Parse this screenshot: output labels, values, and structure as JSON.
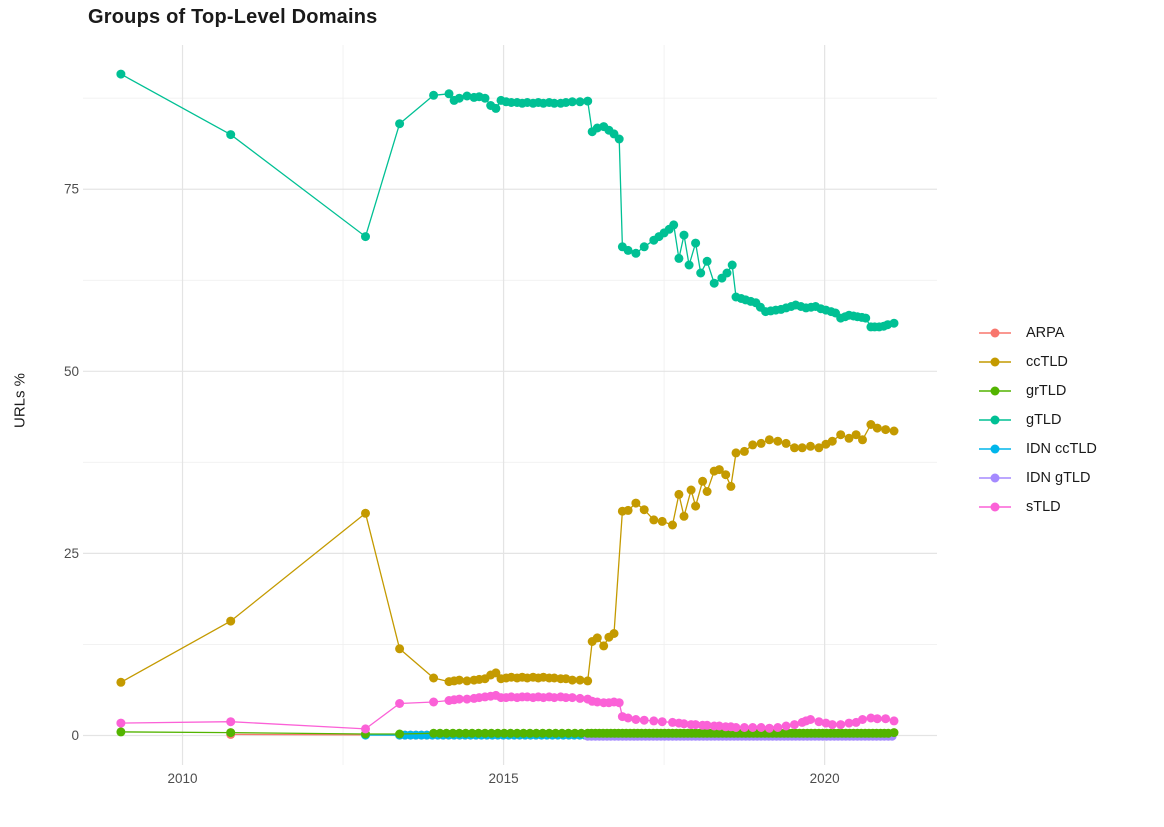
{
  "title": "Groups of Top-Level Domains",
  "y_axis": {
    "label": "URLs %",
    "tick_labels": [
      "0",
      "25",
      "50",
      "75"
    ]
  },
  "x_axis": {
    "tick_labels": [
      "2010",
      "2015",
      "2020"
    ]
  },
  "legend": {
    "position": "right",
    "items": [
      {
        "label": "ARPA",
        "color": "#F8766D"
      },
      {
        "label": "ccTLD",
        "color": "#C49A00"
      },
      {
        "label": "grTLD",
        "color": "#53B400"
      },
      {
        "label": "gTLD",
        "color": "#00C094"
      },
      {
        "label": "IDN ccTLD",
        "color": "#00B6EB"
      },
      {
        "label": "IDN gTLD",
        "color": "#A58AFF"
      },
      {
        "label": "sTLD",
        "color": "#FB61D7"
      }
    ]
  },
  "chart_data": {
    "type": "line",
    "title": "Groups of Top-Level Domains",
    "xlabel": "",
    "ylabel": "URLs %",
    "x_range": [
      2008.45,
      2021.75
    ],
    "y_range": [
      -4.05,
      94.8
    ],
    "x_major_ticks": [
      2010,
      2015,
      2020
    ],
    "x_minor_gridlines": [
      2012.5,
      2017.5
    ],
    "y_major_ticks": [
      0,
      25,
      50,
      75
    ],
    "y_minor_gridlines": [
      12.5,
      37.5,
      62.5,
      87.5
    ],
    "grid": true,
    "legend_position": "right",
    "marker_radius": 4.5,
    "line_width": 1.3,
    "series": [
      {
        "name": "ARPA",
        "color": "#F8766D",
        "points": [
          [
            2010.75,
            0.15
          ],
          [
            2012.85,
            0.1
          ]
        ],
        "runs": [
          {
            "from": 2013.38,
            "to": 2021.08,
            "step": 0.085,
            "value": 0.05
          }
        ]
      },
      {
        "name": "IDN ccTLD",
        "color": "#00B6EB",
        "points": [
          [
            2012.85,
            0.05
          ]
        ],
        "runs": [
          {
            "from": 2013.38,
            "to": 2021.08,
            "step": 0.085,
            "value": 0.05
          }
        ]
      },
      {
        "name": "IDN gTLD",
        "color": "#A58AFF",
        "points": [],
        "runs": [
          {
            "from": 2016.31,
            "to": 2021.08,
            "step": 0.06,
            "value": -0.1
          }
        ]
      },
      {
        "name": "ccTLD",
        "color": "#C49A00",
        "points": [
          [
            2009.04,
            7.3
          ],
          [
            2010.75,
            15.7
          ],
          [
            2012.85,
            30.5
          ],
          [
            2013.38,
            11.9
          ],
          [
            2013.91,
            7.9
          ],
          [
            2014.15,
            7.4
          ],
          [
            2014.23,
            7.5
          ],
          [
            2014.31,
            7.6
          ],
          [
            2014.43,
            7.5
          ],
          [
            2014.54,
            7.6
          ],
          [
            2014.62,
            7.7
          ],
          [
            2014.71,
            7.8
          ],
          [
            2014.8,
            8.3
          ],
          [
            2014.88,
            8.6
          ],
          [
            2014.96,
            7.8
          ],
          [
            2015.04,
            7.9
          ],
          [
            2015.12,
            8.0
          ],
          [
            2015.21,
            7.9
          ],
          [
            2015.29,
            8.0
          ],
          [
            2015.37,
            7.9
          ],
          [
            2015.46,
            8.0
          ],
          [
            2015.54,
            7.9
          ],
          [
            2015.62,
            8.0
          ],
          [
            2015.71,
            7.9
          ],
          [
            2015.79,
            7.9
          ],
          [
            2015.89,
            7.8
          ],
          [
            2015.97,
            7.8
          ],
          [
            2016.07,
            7.6
          ],
          [
            2016.19,
            7.6
          ],
          [
            2016.31,
            7.5
          ],
          [
            2016.38,
            12.9
          ],
          [
            2016.46,
            13.4
          ],
          [
            2016.56,
            12.3
          ],
          [
            2016.64,
            13.5
          ],
          [
            2016.72,
            14.0
          ],
          [
            2016.85,
            30.8
          ],
          [
            2016.94,
            30.9
          ],
          [
            2017.06,
            31.9
          ],
          [
            2017.19,
            31.0
          ],
          [
            2017.34,
            29.6
          ],
          [
            2017.47,
            29.4
          ],
          [
            2017.63,
            28.9
          ],
          [
            2017.73,
            33.1
          ],
          [
            2017.81,
            30.1
          ],
          [
            2017.92,
            33.7
          ],
          [
            2017.99,
            31.5
          ],
          [
            2018.1,
            34.9
          ],
          [
            2018.17,
            33.5
          ],
          [
            2018.28,
            36.3
          ],
          [
            2018.36,
            36.5
          ],
          [
            2018.46,
            35.8
          ],
          [
            2018.54,
            34.2
          ],
          [
            2018.62,
            38.8
          ],
          [
            2018.75,
            39.0
          ],
          [
            2018.88,
            39.9
          ],
          [
            2019.01,
            40.1
          ],
          [
            2019.14,
            40.6
          ],
          [
            2019.27,
            40.4
          ],
          [
            2019.4,
            40.1
          ],
          [
            2019.53,
            39.5
          ],
          [
            2019.65,
            39.5
          ],
          [
            2019.78,
            39.7
          ],
          [
            2019.91,
            39.5
          ],
          [
            2020.02,
            40.0
          ],
          [
            2020.12,
            40.4
          ],
          [
            2020.25,
            41.3
          ],
          [
            2020.38,
            40.8
          ],
          [
            2020.49,
            41.3
          ],
          [
            2020.59,
            40.6
          ],
          [
            2020.72,
            42.7
          ],
          [
            2020.82,
            42.2
          ],
          [
            2020.95,
            42.0
          ],
          [
            2021.08,
            41.8
          ]
        ],
        "runs": []
      },
      {
        "name": "grTLD",
        "color": "#53B400",
        "points": [
          [
            2009.04,
            0.5
          ],
          [
            2010.75,
            0.4
          ],
          [
            2012.85,
            0.2
          ],
          [
            2013.38,
            0.2
          ],
          [
            2021.08,
            0.4
          ]
        ],
        "runs": [
          {
            "from": 2013.91,
            "to": 2016.25,
            "step": 0.1,
            "value": 0.3
          },
          {
            "from": 2016.31,
            "to": 2021.02,
            "step": 0.06,
            "value": 0.3
          }
        ]
      },
      {
        "name": "gTLD",
        "color": "#00C094",
        "points": [
          [
            2009.04,
            90.8
          ],
          [
            2010.75,
            82.5
          ],
          [
            2012.85,
            68.5
          ],
          [
            2013.38,
            84.0
          ],
          [
            2013.91,
            87.9
          ],
          [
            2014.15,
            88.1
          ],
          [
            2014.23,
            87.2
          ],
          [
            2014.31,
            87.5
          ],
          [
            2014.43,
            87.8
          ],
          [
            2014.54,
            87.6
          ],
          [
            2014.62,
            87.7
          ],
          [
            2014.71,
            87.5
          ],
          [
            2014.8,
            86.5
          ],
          [
            2014.88,
            86.1
          ],
          [
            2014.96,
            87.2
          ],
          [
            2015.04,
            87.0
          ],
          [
            2015.12,
            86.9
          ],
          [
            2015.21,
            86.9
          ],
          [
            2015.29,
            86.8
          ],
          [
            2015.37,
            86.9
          ],
          [
            2015.46,
            86.8
          ],
          [
            2015.54,
            86.9
          ],
          [
            2015.62,
            86.8
          ],
          [
            2015.71,
            86.9
          ],
          [
            2015.79,
            86.8
          ],
          [
            2015.89,
            86.8
          ],
          [
            2015.97,
            86.9
          ],
          [
            2016.07,
            87.0
          ],
          [
            2016.19,
            87.0
          ],
          [
            2016.31,
            87.1
          ],
          [
            2016.38,
            82.9
          ],
          [
            2016.46,
            83.4
          ],
          [
            2016.56,
            83.6
          ],
          [
            2016.64,
            83.1
          ],
          [
            2016.72,
            82.6
          ],
          [
            2016.8,
            81.9
          ],
          [
            2016.85,
            67.1
          ],
          [
            2016.94,
            66.6
          ],
          [
            2017.06,
            66.2
          ],
          [
            2017.19,
            67.1
          ],
          [
            2017.34,
            68.0
          ],
          [
            2017.42,
            68.5
          ],
          [
            2017.5,
            69.0
          ],
          [
            2017.58,
            69.5
          ],
          [
            2017.65,
            70.1
          ],
          [
            2017.73,
            65.5
          ],
          [
            2017.81,
            68.7
          ],
          [
            2017.89,
            64.6
          ],
          [
            2017.99,
            67.6
          ],
          [
            2018.07,
            63.5
          ],
          [
            2018.17,
            65.1
          ],
          [
            2018.28,
            62.1
          ],
          [
            2018.4,
            62.8
          ],
          [
            2018.48,
            63.5
          ],
          [
            2018.56,
            64.6
          ],
          [
            2018.62,
            60.2
          ],
          [
            2018.7,
            60.0
          ],
          [
            2018.77,
            59.8
          ],
          [
            2018.85,
            59.6
          ],
          [
            2018.93,
            59.4
          ],
          [
            2019.0,
            58.8
          ],
          [
            2019.08,
            58.2
          ],
          [
            2019.16,
            58.3
          ],
          [
            2019.24,
            58.4
          ],
          [
            2019.32,
            58.5
          ],
          [
            2019.4,
            58.7
          ],
          [
            2019.48,
            58.9
          ],
          [
            2019.55,
            59.1
          ],
          [
            2019.63,
            58.9
          ],
          [
            2019.71,
            58.7
          ],
          [
            2019.79,
            58.8
          ],
          [
            2019.86,
            58.9
          ],
          [
            2019.94,
            58.6
          ],
          [
            2020.02,
            58.4
          ],
          [
            2020.1,
            58.2
          ],
          [
            2020.17,
            58.0
          ],
          [
            2020.25,
            57.3
          ],
          [
            2020.32,
            57.5
          ],
          [
            2020.38,
            57.7
          ],
          [
            2020.45,
            57.6
          ],
          [
            2020.51,
            57.5
          ],
          [
            2020.58,
            57.4
          ],
          [
            2020.64,
            57.3
          ],
          [
            2020.72,
            56.1
          ],
          [
            2020.78,
            56.1
          ],
          [
            2020.85,
            56.1
          ],
          [
            2020.92,
            56.2
          ],
          [
            2020.98,
            56.4
          ],
          [
            2021.08,
            56.6
          ]
        ],
        "runs": []
      },
      {
        "name": "sTLD",
        "color": "#FB61D7",
        "points": [
          [
            2009.04,
            1.7
          ],
          [
            2010.75,
            1.9
          ],
          [
            2012.85,
            0.9
          ],
          [
            2013.38,
            4.4
          ],
          [
            2013.91,
            4.6
          ],
          [
            2014.15,
            4.8
          ],
          [
            2014.23,
            4.9
          ],
          [
            2014.31,
            5.0
          ],
          [
            2014.43,
            5.0
          ],
          [
            2014.54,
            5.1
          ],
          [
            2014.62,
            5.2
          ],
          [
            2014.71,
            5.3
          ],
          [
            2014.8,
            5.4
          ],
          [
            2014.88,
            5.5
          ],
          [
            2014.96,
            5.2
          ],
          [
            2015.04,
            5.2
          ],
          [
            2015.12,
            5.3
          ],
          [
            2015.21,
            5.2
          ],
          [
            2015.29,
            5.3
          ],
          [
            2015.37,
            5.3
          ],
          [
            2015.46,
            5.2
          ],
          [
            2015.54,
            5.3
          ],
          [
            2015.62,
            5.2
          ],
          [
            2015.71,
            5.3
          ],
          [
            2015.79,
            5.2
          ],
          [
            2015.89,
            5.3
          ],
          [
            2015.97,
            5.2
          ],
          [
            2016.07,
            5.2
          ],
          [
            2016.19,
            5.1
          ],
          [
            2016.31,
            5.0
          ],
          [
            2016.38,
            4.7
          ],
          [
            2016.46,
            4.6
          ],
          [
            2016.56,
            4.5
          ],
          [
            2016.64,
            4.5
          ],
          [
            2016.72,
            4.6
          ],
          [
            2016.8,
            4.5
          ],
          [
            2016.85,
            2.6
          ],
          [
            2016.94,
            2.4
          ],
          [
            2017.06,
            2.2
          ],
          [
            2017.19,
            2.1
          ],
          [
            2017.34,
            2.0
          ],
          [
            2017.47,
            1.9
          ],
          [
            2017.63,
            1.8
          ],
          [
            2017.73,
            1.7
          ],
          [
            2017.81,
            1.6
          ],
          [
            2017.92,
            1.5
          ],
          [
            2017.99,
            1.5
          ],
          [
            2018.1,
            1.4
          ],
          [
            2018.17,
            1.4
          ],
          [
            2018.28,
            1.3
          ],
          [
            2018.36,
            1.3
          ],
          [
            2018.46,
            1.2
          ],
          [
            2018.54,
            1.2
          ],
          [
            2018.62,
            1.1
          ],
          [
            2018.75,
            1.1
          ],
          [
            2018.88,
            1.1
          ],
          [
            2019.01,
            1.1
          ],
          [
            2019.14,
            1.0
          ],
          [
            2019.27,
            1.1
          ],
          [
            2019.4,
            1.3
          ],
          [
            2019.53,
            1.5
          ],
          [
            2019.65,
            1.8
          ],
          [
            2019.71,
            2.0
          ],
          [
            2019.78,
            2.2
          ],
          [
            2019.91,
            1.9
          ],
          [
            2020.02,
            1.7
          ],
          [
            2020.12,
            1.5
          ],
          [
            2020.25,
            1.5
          ],
          [
            2020.38,
            1.7
          ],
          [
            2020.49,
            1.8
          ],
          [
            2020.59,
            2.2
          ],
          [
            2020.72,
            2.4
          ],
          [
            2020.82,
            2.3
          ],
          [
            2020.95,
            2.3
          ],
          [
            2021.08,
            2.0
          ]
        ],
        "runs": []
      }
    ]
  }
}
